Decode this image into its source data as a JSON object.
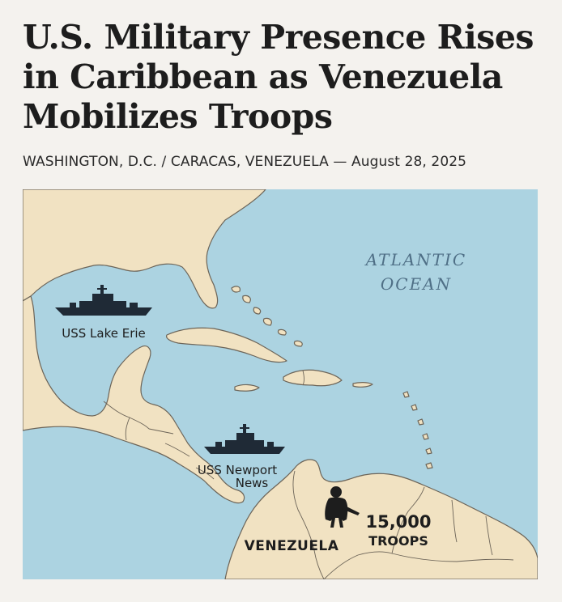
{
  "headline": {
    "line1": "U.S. Military Presence Rises",
    "line2": "in Caribbean as Venezuela",
    "line3": "Mobilizes Troops"
  },
  "dateline": "WASHINGTON, D.C. / CARACAS, VENEZUELA — August 28, 2025",
  "map": {
    "ocean_label_line1": "ATLANTIC",
    "ocean_label_line2": "OCEAN",
    "ships": [
      {
        "name": "USS Lake Erie"
      },
      {
        "name_line1": "USS Newport",
        "name_line2": "News"
      }
    ],
    "country_label": "VENEZUELA",
    "troops": {
      "count": "15,000",
      "label": "TROOPS"
    },
    "colors": {
      "water": "#acd3e1",
      "land": "#f1e2c2",
      "ship": "#1f2a36",
      "soldier": "#1d1d1d"
    },
    "icons": [
      "warship-icon",
      "warship-icon",
      "soldier-icon"
    ]
  }
}
